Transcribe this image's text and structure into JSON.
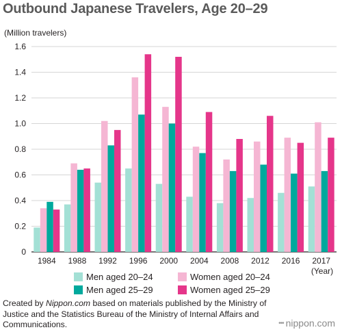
{
  "chart_data": {
    "type": "bar",
    "title": "Outbound Japanese Travelers, Age 20–29",
    "ylabel": "(Million travelers)",
    "xlabel": "(Year)",
    "categories": [
      "1984",
      "1988",
      "1992",
      "1996",
      "2000",
      "2004",
      "2008",
      "2012",
      "2016",
      "2017"
    ],
    "ylim": [
      0,
      1.6
    ],
    "yticks": [
      "0",
      "0.2",
      "0.4",
      "0.6",
      "0.8",
      "1.0",
      "1.2",
      "1.4",
      "1.6"
    ],
    "grid": true,
    "legend_position": "bottom",
    "series": [
      {
        "name": "Men aged 20–24",
        "color": "#a3e0d5",
        "values": [
          0.19,
          0.37,
          0.54,
          0.65,
          0.53,
          0.43,
          0.38,
          0.42,
          0.46,
          0.51
        ]
      },
      {
        "name": "Women aged 20–24",
        "color": "#f5b6d3",
        "values": [
          0.34,
          0.69,
          1.02,
          1.36,
          1.13,
          0.82,
          0.72,
          0.86,
          0.89,
          1.01
        ]
      },
      {
        "name": "Men aged 25–29",
        "color": "#00a99d",
        "values": [
          0.39,
          0.64,
          0.83,
          1.07,
          1.0,
          0.77,
          0.63,
          0.68,
          0.61,
          0.63
        ]
      },
      {
        "name": "Women aged 25–29",
        "color": "#e5368a",
        "values": [
          0.33,
          0.65,
          0.95,
          1.54,
          1.52,
          1.09,
          0.88,
          1.06,
          0.85,
          0.89
        ]
      }
    ]
  },
  "footer": {
    "credit_prefix": "Created by ",
    "credit_source": "Nippon.com",
    "credit_rest": " based on materials published by the Ministry of Justice and the Statistics Bureau of the Ministry of Internal Affairs and Communications.",
    "brand_dots": "•••",
    "brand_name": "nippon.com"
  }
}
